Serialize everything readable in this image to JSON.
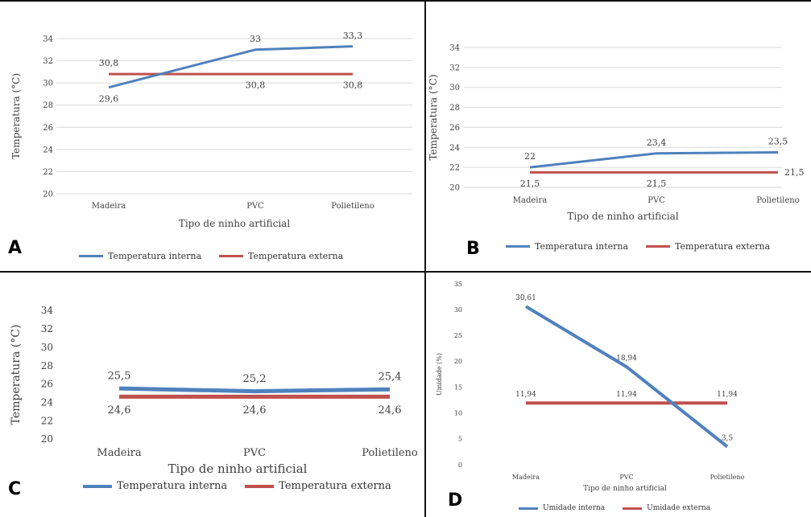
{
  "colors": {
    "internal": "#4f81bd",
    "external": "#c0504d",
    "grid": "#d9d9d9",
    "frame": "#111111"
  },
  "chart_data": [
    {
      "type": "line",
      "panel_label": "A",
      "title": "",
      "xlabel": "Tipo de ninho artificial",
      "ylabel": "Temperatura (°C)",
      "categories": [
        "Madeira",
        "PVC",
        "Polietileno"
      ],
      "ylim": [
        20,
        34
      ],
      "yticks": [
        20,
        22,
        24,
        26,
        28,
        30,
        32,
        34
      ],
      "grid": true,
      "legend_position": "bottom",
      "series": [
        {
          "name": "Temperatura interna",
          "values": [
            29.6,
            33,
            33.3
          ],
          "labels": [
            "29,6",
            "33",
            "33,3"
          ],
          "label_pos": [
            "below",
            "above",
            "above"
          ]
        },
        {
          "name": "Temperatura externa",
          "values": [
            30.8,
            30.8,
            30.8
          ],
          "labels": [
            "30,8",
            "30,8",
            "30,8"
          ],
          "label_pos": [
            "above",
            "below",
            "below"
          ]
        }
      ]
    },
    {
      "type": "line",
      "panel_label": "B",
      "title": "",
      "xlabel": "Tipo de ninho artificial",
      "ylabel": "Temperatura (°C)",
      "categories": [
        "Madeira",
        "PVC",
        "Polietileno"
      ],
      "ylim": [
        20,
        34
      ],
      "yticks": [
        20,
        22,
        24,
        26,
        28,
        30,
        32,
        34
      ],
      "grid": true,
      "legend_position": "bottom",
      "series": [
        {
          "name": "Temperatura interna",
          "values": [
            22,
            23.4,
            23.5
          ],
          "labels": [
            "22",
            "23,4",
            "23,5"
          ],
          "label_pos": [
            "above",
            "above",
            "above"
          ]
        },
        {
          "name": "Temperatura externa",
          "values": [
            21.5,
            21.5,
            21.5
          ],
          "labels": [
            "21,5",
            "21,5",
            "21,5"
          ],
          "label_pos": [
            "below",
            "below",
            "right"
          ]
        }
      ]
    },
    {
      "type": "line",
      "panel_label": "C",
      "title": "",
      "xlabel": "Tipo de ninho artificial",
      "ylabel": "Temperatura (°C)",
      "categories": [
        "Madeira",
        "PVC",
        "Polietileno"
      ],
      "ylim": [
        20,
        34
      ],
      "yticks": [
        20,
        22,
        24,
        26,
        28,
        30,
        32,
        34
      ],
      "grid": false,
      "legend_position": "bottom",
      "series": [
        {
          "name": "Temperatura interna",
          "values": [
            25.5,
            25.2,
            25.4
          ],
          "labels": [
            "25,5",
            "25,2",
            "25,4"
          ],
          "label_pos": [
            "above",
            "above",
            "above"
          ]
        },
        {
          "name": "Temperatura externa",
          "values": [
            24.6,
            24.6,
            24.6
          ],
          "labels": [
            "24,6",
            "24,6",
            "24,6"
          ],
          "label_pos": [
            "below",
            "below",
            "below"
          ]
        }
      ]
    },
    {
      "type": "line",
      "panel_label": "D",
      "title": "",
      "xlabel": "Tipo de ninho artificial",
      "ylabel": "Umidade (%)",
      "categories": [
        "Madeira",
        "PVC",
        "Polietileno"
      ],
      "ylim": [
        0,
        35
      ],
      "yticks": [
        0,
        5,
        10,
        15,
        20,
        25,
        30,
        35
      ],
      "grid": false,
      "legend_position": "bottom",
      "series": [
        {
          "name": "Umidade interna",
          "values": [
            30.61,
            18.94,
            3.5
          ],
          "labels": [
            "30,61",
            "18,94",
            "3,5"
          ],
          "label_pos": [
            "above",
            "above",
            "above"
          ]
        },
        {
          "name": "Umidade externa",
          "values": [
            11.94,
            11.94,
            11.94
          ],
          "labels": [
            "11,94",
            "11,94",
            "11,94"
          ],
          "label_pos": [
            "above",
            "above",
            "above"
          ]
        }
      ]
    }
  ]
}
